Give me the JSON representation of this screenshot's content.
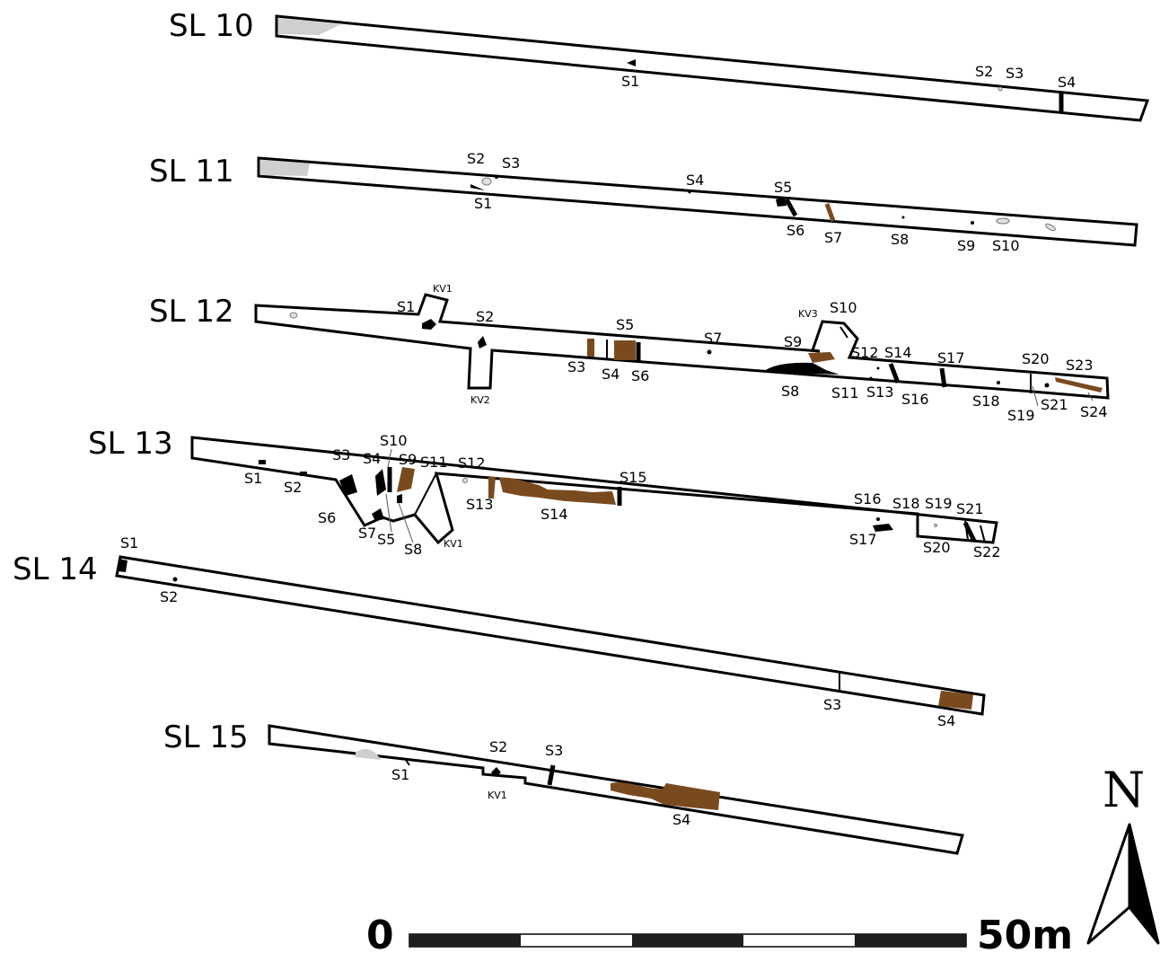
{
  "trenches": [
    {
      "name": "SL 10",
      "features": [
        "S1",
        "S2",
        "S3",
        "S4"
      ]
    },
    {
      "name": "SL 11",
      "features": [
        "S1",
        "S2",
        "S3",
        "S4",
        "S5",
        "S6",
        "S7",
        "S8",
        "S9",
        "S10"
      ]
    },
    {
      "name": "SL 12",
      "features": [
        "S1",
        "S2",
        "S3",
        "S4",
        "S5",
        "S6",
        "S7",
        "S8",
        "S9",
        "S10",
        "S11",
        "S12",
        "S13",
        "S14",
        "S16",
        "S17",
        "S18",
        "S19",
        "S20",
        "S21",
        "S23",
        "S24"
      ],
      "areas": [
        "KV1",
        "KV2",
        "KV3"
      ]
    },
    {
      "name": "SL 13",
      "features": [
        "S1",
        "S2",
        "S3",
        "S4",
        "S5",
        "S6",
        "S7",
        "S8",
        "S9",
        "S10",
        "S11",
        "S12",
        "S13",
        "S14",
        "S15",
        "S16",
        "S17",
        "S18",
        "S19",
        "S20",
        "S21",
        "S22"
      ],
      "areas": [
        "KV1"
      ]
    },
    {
      "name": "SL 14",
      "features": [
        "S1",
        "S2",
        "S3",
        "S4"
      ]
    },
    {
      "name": "SL 15",
      "features": [
        "S1",
        "S2",
        "S3",
        "S4"
      ],
      "areas": [
        "KV1"
      ]
    }
  ],
  "scale": {
    "start": "0",
    "end": "50m",
    "segments": 5
  },
  "north": "N",
  "colors": {
    "outline": "#000000",
    "fill_dark": "#000000",
    "fill_brown": "#7a4a1f",
    "fill_grey": "#cfcfcf"
  }
}
